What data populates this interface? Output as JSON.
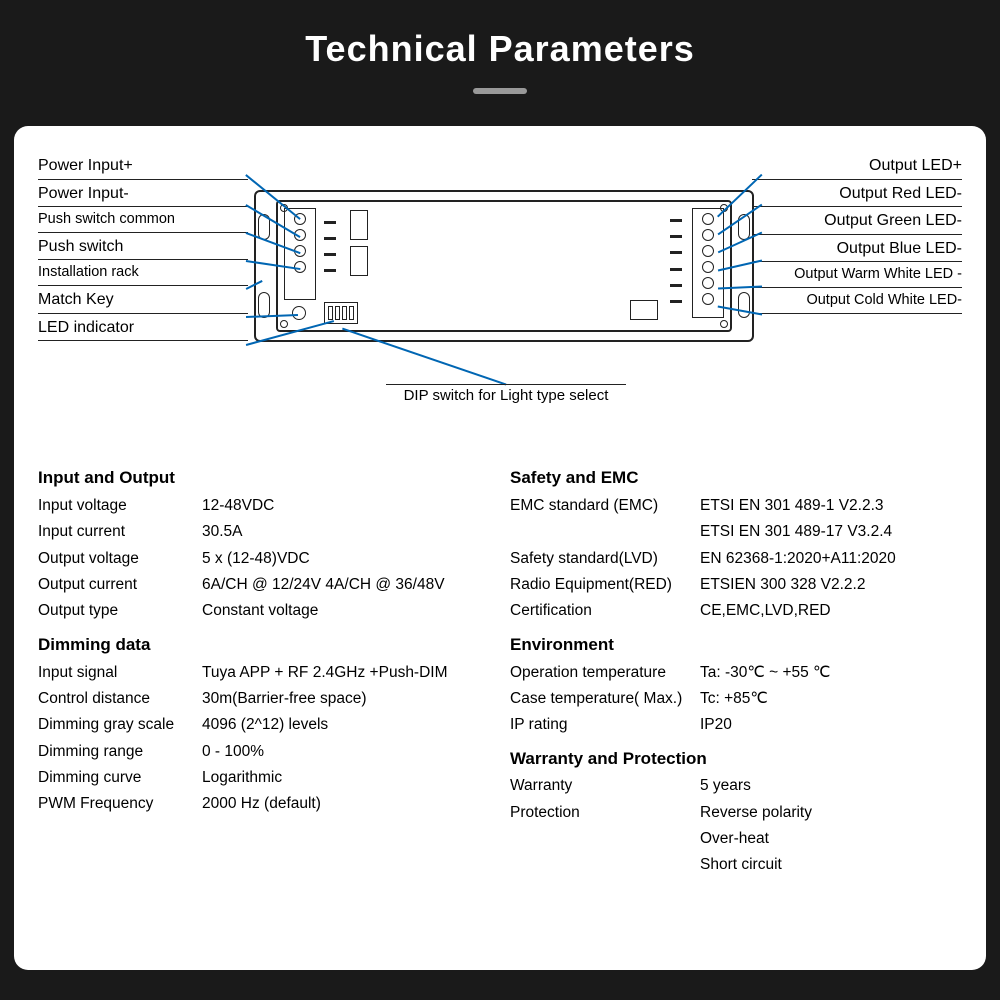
{
  "title": "Technical Parameters",
  "colors": {
    "page_bg": "#1a1a1a",
    "card_bg": "#ffffff",
    "title_color": "#ffffff",
    "underline_color": "#999999",
    "text_color": "#000000",
    "leader_color": "#0066b3",
    "outline_color": "#222222"
  },
  "diagram": {
    "left_labels": [
      "Power Input+",
      "Power Input-",
      "Push switch common",
      "Push switch",
      "Installation rack",
      "Match Key",
      "LED indicator"
    ],
    "right_labels": [
      "Output LED+",
      "Output Red LED-",
      "Output Green LED-",
      "Output Blue LED-",
      "Output Warm White LED -",
      "Output Cold White LED-"
    ],
    "dip_caption": "DIP switch for Light type select"
  },
  "specs_left": [
    {
      "type": "head",
      "text": "Input and Output"
    },
    {
      "type": "row",
      "k": "Input voltage",
      "v": "12-48VDC"
    },
    {
      "type": "row",
      "k": "Input current",
      "v": "30.5A"
    },
    {
      "type": "row",
      "k": "Output voltage",
      "v": "5 x (12-48)VDC"
    },
    {
      "type": "row",
      "k": "Output current",
      "v": "6A/CH @ 12/24V  4A/CH @ 36/48V"
    },
    {
      "type": "row",
      "k": "Output type",
      "v": "Constant voltage"
    },
    {
      "type": "head",
      "text": "Dimming data"
    },
    {
      "type": "row",
      "k": "Input signal",
      "v": "Tuya APP + RF 2.4GHz +Push-DIM"
    },
    {
      "type": "row",
      "k": "Control distance",
      "v": "30m(Barrier-free space)"
    },
    {
      "type": "row",
      "k": "Dimming gray scale",
      "v": "4096 (2^12) levels"
    },
    {
      "type": "row",
      "k": "Dimming range",
      "v": "0 - 100%"
    },
    {
      "type": "row",
      "k": "Dimming curve",
      "v": "Logarithmic"
    },
    {
      "type": "row",
      "k": "PWM Frequency",
      "v": "2000 Hz (default)"
    }
  ],
  "specs_right": [
    {
      "type": "head",
      "text": "Safety and EMC"
    },
    {
      "type": "row",
      "k": "EMC standard (EMC)",
      "v": "ETSI EN 301 489-1 V2.2.3"
    },
    {
      "type": "row",
      "k": "",
      "v": "ETSI EN 301 489-17 V3.2.4"
    },
    {
      "type": "row",
      "k": "Safety standard(LVD)",
      "v": "EN 62368-1:2020+A11:2020"
    },
    {
      "type": "row",
      "k": "Radio Equipment(RED)",
      "v": "ETSIEN 300 328 V2.2.2"
    },
    {
      "type": "row",
      "k": "Certification",
      "v": "CE,EMC,LVD,RED"
    },
    {
      "type": "head",
      "text": "Environment"
    },
    {
      "type": "row",
      "k": "Operation temperature",
      "v": "Ta: -30℃ ~ +55 ℃"
    },
    {
      "type": "row",
      "k": "Case temperature( Max.)",
      "v": "Tc:  +85℃"
    },
    {
      "type": "row",
      "k": "IP rating",
      "v": "IP20"
    },
    {
      "type": "head",
      "text": "Warranty and Protection"
    },
    {
      "type": "row",
      "k": "Warranty",
      "v": "5 years"
    },
    {
      "type": "row",
      "k": "Protection",
      "v": "Reverse polarity"
    },
    {
      "type": "row",
      "k": "",
      "v": "Over-heat"
    },
    {
      "type": "row",
      "k": "",
      "v": "Short circuit"
    }
  ]
}
